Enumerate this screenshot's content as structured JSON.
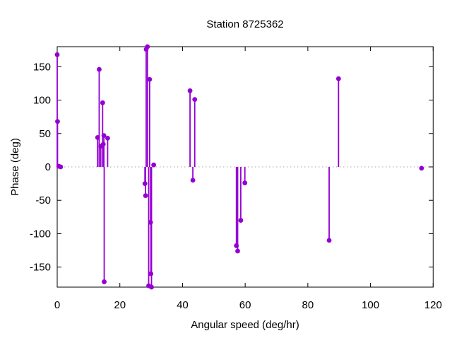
{
  "window": {
    "background": "#ffffff"
  },
  "chart_data": {
    "type": "scatter",
    "style": "impulses-with-points",
    "title": "Station 8725362",
    "xlabel": "Angular speed (deg/hr)",
    "ylabel": "Phase (deg)",
    "xlim": [
      0,
      120
    ],
    "ylim": [
      -180,
      180
    ],
    "x_ticks": [
      0,
      20,
      40,
      60,
      80,
      100,
      120
    ],
    "y_ticks": [
      -150,
      -100,
      -50,
      0,
      50,
      100,
      150
    ],
    "grid": false,
    "zero_line": "dotted",
    "legend": "none",
    "point_color": "#9400D3",
    "zero_line_color": "#a6a6a6",
    "points": [
      {
        "x": 0.0,
        "y": 168
      },
      {
        "x": 0.1,
        "y": 68
      },
      {
        "x": 0.5,
        "y": 1
      },
      {
        "x": 1.1,
        "y": 0
      },
      {
        "x": 12.9,
        "y": 44
      },
      {
        "x": 13.4,
        "y": 146
      },
      {
        "x": 13.9,
        "y": 31
      },
      {
        "x": 14.5,
        "y": 96
      },
      {
        "x": 14.7,
        "y": 34
      },
      {
        "x": 14.9,
        "y": 47
      },
      {
        "x": 15.0,
        "y": -172
      },
      {
        "x": 16.1,
        "y": 43
      },
      {
        "x": 28.0,
        "y": -25
      },
      {
        "x": 28.2,
        "y": -43
      },
      {
        "x": 28.4,
        "y": 176
      },
      {
        "x": 28.8,
        "y": 180
      },
      {
        "x": 29.2,
        "y": -178
      },
      {
        "x": 29.5,
        "y": 131
      },
      {
        "x": 29.8,
        "y": -83
      },
      {
        "x": 29.9,
        "y": -160
      },
      {
        "x": 30.1,
        "y": -180
      },
      {
        "x": 30.8,
        "y": 3
      },
      {
        "x": 42.4,
        "y": 114
      },
      {
        "x": 43.3,
        "y": -20
      },
      {
        "x": 43.9,
        "y": 101
      },
      {
        "x": 57.2,
        "y": -118
      },
      {
        "x": 57.6,
        "y": -126
      },
      {
        "x": 58.6,
        "y": -80
      },
      {
        "x": 59.9,
        "y": -24
      },
      {
        "x": 86.8,
        "y": -110
      },
      {
        "x": 89.8,
        "y": 132
      },
      {
        "x": 116.3,
        "y": -2
      }
    ]
  }
}
